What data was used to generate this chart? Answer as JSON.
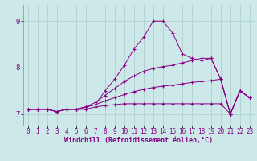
{
  "xlabel": "Windchill (Refroidissement éolien,°C)",
  "xlim": [
    -0.5,
    23.5
  ],
  "ylim": [
    6.75,
    9.35
  ],
  "yticks": [
    7,
    8,
    9
  ],
  "xticks": [
    0,
    1,
    2,
    3,
    4,
    5,
    6,
    7,
    8,
    9,
    10,
    11,
    12,
    13,
    14,
    15,
    16,
    17,
    18,
    19,
    20,
    21,
    22,
    23
  ],
  "bg_color": "#cce8e8",
  "line_color": "#880088",
  "grid_color": "#aacccc",
  "lines": [
    [
      7.1,
      7.1,
      7.1,
      7.05,
      7.1,
      7.1,
      7.15,
      7.2,
      7.5,
      7.75,
      8.05,
      8.4,
      8.65,
      9.0,
      9.0,
      8.75,
      8.3,
      8.2,
      8.15,
      8.2,
      7.75,
      7.0,
      7.5,
      7.35
    ],
    [
      7.1,
      7.1,
      7.1,
      7.05,
      7.1,
      7.1,
      7.15,
      7.25,
      7.4,
      7.55,
      7.7,
      7.82,
      7.92,
      7.98,
      8.02,
      8.05,
      8.1,
      8.15,
      8.2,
      8.2,
      7.75,
      7.0,
      7.5,
      7.35
    ],
    [
      7.1,
      7.1,
      7.1,
      7.05,
      7.1,
      7.1,
      7.15,
      7.2,
      7.28,
      7.35,
      7.42,
      7.48,
      7.53,
      7.57,
      7.6,
      7.62,
      7.65,
      7.68,
      7.7,
      7.72,
      7.75,
      7.0,
      7.5,
      7.35
    ],
    [
      7.1,
      7.1,
      7.1,
      7.05,
      7.1,
      7.1,
      7.1,
      7.15,
      7.18,
      7.2,
      7.22,
      7.22,
      7.22,
      7.22,
      7.22,
      7.22,
      7.22,
      7.22,
      7.22,
      7.22,
      7.22,
      7.0,
      7.5,
      7.35
    ]
  ],
  "xlabel_fontsize": 6.0,
  "tick_fontsize": 5.5,
  "ylabel_fontsize": 6.5
}
